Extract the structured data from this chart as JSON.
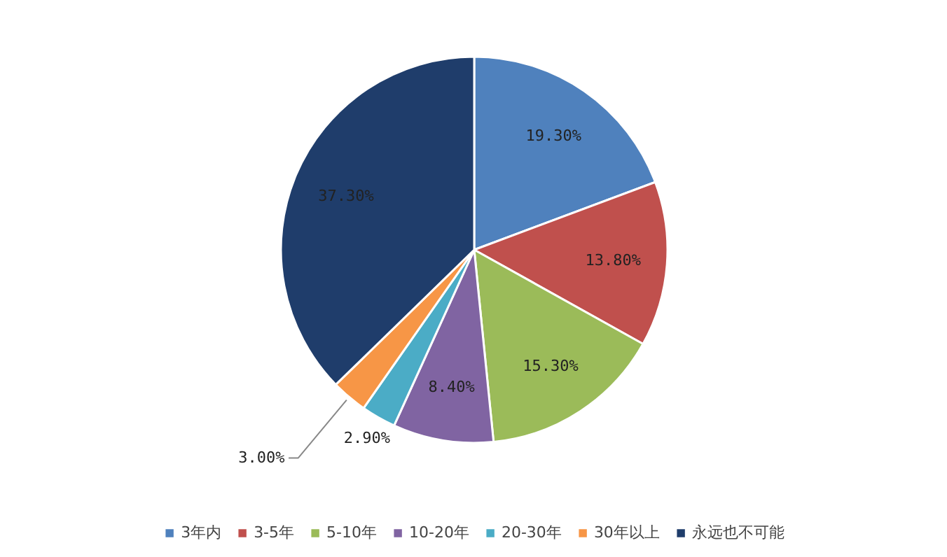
{
  "chart_data": {
    "type": "pie",
    "categories": [
      "3年内",
      "3-5年",
      "5-10年",
      "10-20年",
      "20-30年",
      "30年以上",
      "永远也不可能"
    ],
    "values": [
      19.3,
      13.8,
      15.3,
      8.4,
      2.9,
      3.0,
      37.3
    ],
    "colors": [
      "#4f81bd",
      "#c0504d",
      "#9bbb59",
      "#8064a2",
      "#4bacc6",
      "#f79646",
      "#1f3d6b"
    ],
    "value_labels": [
      "19.30%",
      "13.80%",
      "15.30%",
      "8.40%",
      "2.90%",
      "3.00%",
      "37.30%"
    ],
    "legend": "bottom"
  }
}
